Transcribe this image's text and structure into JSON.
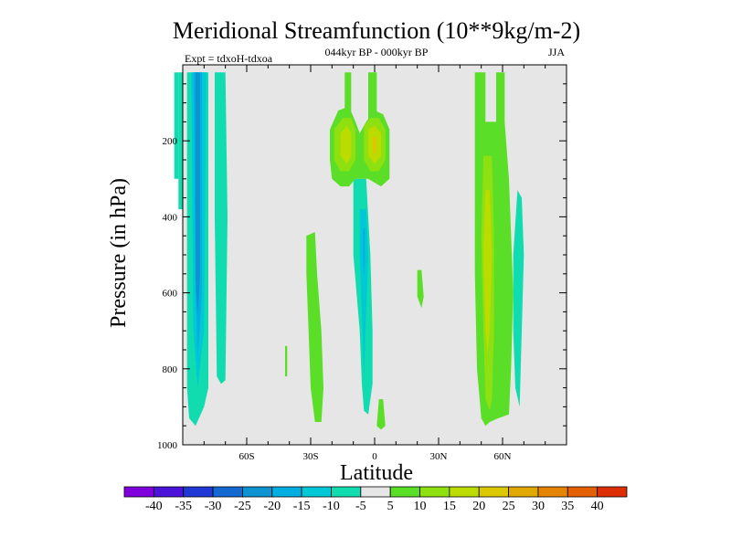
{
  "chart_data": {
    "type": "heatmap",
    "title": "Meridional Streamfunction (10**9kg/m-2)",
    "subtitle": "044kyr BP - 000kyr BP",
    "experiment_label": "Expt = tdxoH-tdxoa",
    "season_label": "JJA",
    "xlabel": "Latitude",
    "ylabel": "Pressure (in hPa)",
    "xlim": [
      -90,
      90
    ],
    "ylim": [
      1000,
      0
    ],
    "x_ticks": [
      {
        "value": -60,
        "label": "60S"
      },
      {
        "value": -30,
        "label": "30S"
      },
      {
        "value": 0,
        "label": "0"
      },
      {
        "value": 30,
        "label": "30N"
      },
      {
        "value": 60,
        "label": "60N"
      }
    ],
    "y_ticks": [
      {
        "value": 200,
        "label": "200"
      },
      {
        "value": 400,
        "label": "400"
      },
      {
        "value": 600,
        "label": "600"
      },
      {
        "value": 800,
        "label": "800"
      },
      {
        "value": 1000,
        "label": "1000"
      }
    ],
    "grid": false,
    "background_color": "#e6e6e6",
    "colorbar": {
      "levels": [
        "-40",
        "-35",
        "-30",
        "-25",
        "-20",
        "-15",
        "-10",
        "-5",
        "5",
        "10",
        "15",
        "20",
        "25",
        "30",
        "35",
        "40"
      ],
      "colors": [
        "#7f00dc",
        "#4b12d9",
        "#2038d6",
        "#1468d2",
        "#0d93d1",
        "#00aee0",
        "#00c8d6",
        "#10dcb0",
        "#e6e6e6",
        "#5ade28",
        "#8ee010",
        "#bcdc00",
        "#dcc800",
        "#e0a800",
        "#e48400",
        "#e26000",
        "#dc2e00"
      ]
    },
    "contours": [
      {
        "value": -10,
        "polygon": [
          [
            -88,
            20
          ],
          [
            -78,
            20
          ],
          [
            -78,
            850
          ],
          [
            -80,
            900
          ],
          [
            -84,
            950
          ],
          [
            -87,
            930
          ],
          [
            -88,
            850
          ]
        ]
      },
      {
        "value": -15,
        "polygon": [
          [
            -86,
            20
          ],
          [
            -79,
            20
          ],
          [
            -80,
            700
          ],
          [
            -83,
            850
          ],
          [
            -85,
            700
          ]
        ]
      },
      {
        "value": -20,
        "polygon": [
          [
            -85,
            20
          ],
          [
            -81,
            20
          ],
          [
            -81,
            600
          ],
          [
            -83,
            780
          ],
          [
            -84,
            600
          ]
        ]
      },
      {
        "value": -25,
        "polygon": [
          [
            -84,
            20
          ],
          [
            -82,
            20
          ],
          [
            -82,
            560
          ],
          [
            -83,
            660
          ],
          [
            -84,
            560
          ]
        ]
      },
      {
        "value": -10,
        "polygon": [
          [
            -92,
            20
          ],
          [
            -90,
            20
          ],
          [
            -90,
            380
          ],
          [
            -92,
            380
          ]
        ]
      },
      {
        "value": -10,
        "polygon": [
          [
            -94,
            20
          ],
          [
            -92,
            20
          ],
          [
            -92,
            300
          ],
          [
            -94,
            300
          ]
        ]
      },
      {
        "value": -10,
        "polygon": [
          [
            -75,
            20
          ],
          [
            -70,
            20
          ],
          [
            -69,
            400
          ],
          [
            -70,
            830
          ],
          [
            -72,
            840
          ],
          [
            -74,
            820
          ],
          [
            -75,
            400
          ]
        ]
      },
      {
        "value": -10,
        "polygon": [
          [
            -10,
            300
          ],
          [
            -4,
            300
          ],
          [
            -2,
            500
          ],
          [
            -1,
            700
          ],
          [
            -1,
            840
          ],
          [
            -3,
            920
          ],
          [
            -5,
            910
          ],
          [
            -6,
            840
          ],
          [
            -7,
            700
          ],
          [
            -10,
            500
          ]
        ]
      },
      {
        "value": -15,
        "polygon": [
          [
            -7,
            380
          ],
          [
            -4,
            380
          ],
          [
            -3,
            500
          ],
          [
            -4,
            650
          ],
          [
            -5,
            820
          ],
          [
            -6,
            650
          ],
          [
            -7,
            500
          ]
        ]
      },
      {
        "value": -20,
        "polygon": [
          [
            -5.5,
            430
          ],
          [
            -4.5,
            430
          ],
          [
            -4.5,
            500
          ],
          [
            -5,
            560
          ],
          [
            -5.5,
            500
          ]
        ]
      },
      {
        "value": 5,
        "polygon": [
          [
            -32,
            450
          ],
          [
            -28,
            440
          ],
          [
            -27,
            550
          ],
          [
            -25,
            700
          ],
          [
            -24,
            850
          ],
          [
            -25,
            940
          ],
          [
            -28,
            940
          ],
          [
            -30,
            850
          ],
          [
            -31,
            700
          ],
          [
            -32,
            550
          ]
        ]
      },
      {
        "value": 5,
        "polygon": [
          [
            -21,
            170
          ],
          [
            -17,
            120
          ],
          [
            -12,
            110
          ],
          [
            -9,
            150
          ],
          [
            -7,
            180
          ],
          [
            -4,
            150
          ],
          [
            0,
            120
          ],
          [
            4,
            130
          ],
          [
            7,
            170
          ],
          [
            7,
            300
          ],
          [
            3,
            320
          ],
          [
            0,
            310
          ],
          [
            -3,
            300
          ],
          [
            -6,
            300
          ],
          [
            -9,
            300
          ],
          [
            -12,
            320
          ],
          [
            -16,
            320
          ],
          [
            -20,
            300
          ],
          [
            -21,
            250
          ]
        ]
      },
      {
        "value": 5,
        "polygon": [
          [
            -14,
            20
          ],
          [
            -11,
            20
          ],
          [
            -11,
            150
          ],
          [
            -14,
            150
          ]
        ]
      },
      {
        "value": 5,
        "polygon": [
          [
            -3,
            20
          ],
          [
            1,
            20
          ],
          [
            1,
            150
          ],
          [
            -3,
            150
          ]
        ]
      },
      {
        "value": 10,
        "polygon": [
          [
            -19,
            170
          ],
          [
            -15,
            140
          ],
          [
            -11,
            140
          ],
          [
            -9,
            170
          ],
          [
            -9,
            250
          ],
          [
            -12,
            280
          ],
          [
            -16,
            280
          ],
          [
            -19,
            250
          ]
        ]
      },
      {
        "value": 10,
        "polygon": [
          [
            -5,
            160
          ],
          [
            -2,
            140
          ],
          [
            2,
            140
          ],
          [
            5,
            170
          ],
          [
            5,
            250
          ],
          [
            2,
            280
          ],
          [
            -2,
            280
          ],
          [
            -5,
            250
          ]
        ]
      },
      {
        "value": 15,
        "polygon": [
          [
            -16,
            180
          ],
          [
            -13,
            160
          ],
          [
            -11,
            180
          ],
          [
            -11,
            240
          ],
          [
            -13,
            260
          ],
          [
            -16,
            240
          ]
        ]
      },
      {
        "value": 15,
        "polygon": [
          [
            -3,
            170
          ],
          [
            0,
            160
          ],
          [
            3,
            180
          ],
          [
            3,
            240
          ],
          [
            0,
            260
          ],
          [
            -3,
            240
          ]
        ]
      },
      {
        "value": 20,
        "polygon": [
          [
            -1,
            190
          ],
          [
            1,
            190
          ],
          [
            1,
            220
          ],
          [
            0,
            240
          ],
          [
            -1,
            220
          ]
        ]
      },
      {
        "value": 5,
        "polygon": [
          [
            20,
            540
          ],
          [
            22,
            540
          ],
          [
            23,
            610
          ],
          [
            22,
            640
          ],
          [
            20,
            610
          ]
        ]
      },
      {
        "value": 5,
        "polygon": [
          [
            2,
            880
          ],
          [
            4,
            880
          ],
          [
            5,
            950
          ],
          [
            3,
            960
          ],
          [
            1,
            950
          ]
        ]
      },
      {
        "value": 5,
        "polygon": [
          [
            -42,
            740
          ],
          [
            -41,
            740
          ],
          [
            -41,
            820
          ],
          [
            -42,
            820
          ]
        ]
      },
      {
        "value": 5,
        "polygon": [
          [
            47,
            20
          ],
          [
            52,
            20
          ],
          [
            52,
            150
          ],
          [
            57,
            150
          ],
          [
            57,
            20
          ],
          [
            61,
            20
          ],
          [
            61,
            150
          ],
          [
            63,
            300
          ],
          [
            65,
            600
          ],
          [
            64,
            800
          ],
          [
            63,
            920
          ],
          [
            58,
            930
          ],
          [
            54,
            940
          ],
          [
            52,
            950
          ],
          [
            50,
            930
          ],
          [
            48,
            800
          ],
          [
            47,
            550
          ],
          [
            47,
            300
          ]
        ]
      },
      {
        "value": 10,
        "polygon": [
          [
            51,
            240
          ],
          [
            55,
            240
          ],
          [
            56,
            450
          ],
          [
            56,
            700
          ],
          [
            55,
            880
          ],
          [
            54,
            910
          ],
          [
            52,
            880
          ],
          [
            51,
            700
          ],
          [
            50,
            450
          ]
        ]
      },
      {
        "value": 15,
        "polygon": [
          [
            52,
            330
          ],
          [
            54,
            330
          ],
          [
            55,
            500
          ],
          [
            54,
            700
          ],
          [
            53,
            760
          ],
          [
            52,
            700
          ],
          [
            51,
            500
          ]
        ]
      },
      {
        "value": -10,
        "polygon": [
          [
            67,
            330
          ],
          [
            69,
            350
          ],
          [
            70,
            500
          ],
          [
            69,
            700
          ],
          [
            68,
            900
          ],
          [
            66,
            850
          ],
          [
            65,
            700
          ],
          [
            65,
            500
          ]
        ]
      }
    ]
  }
}
